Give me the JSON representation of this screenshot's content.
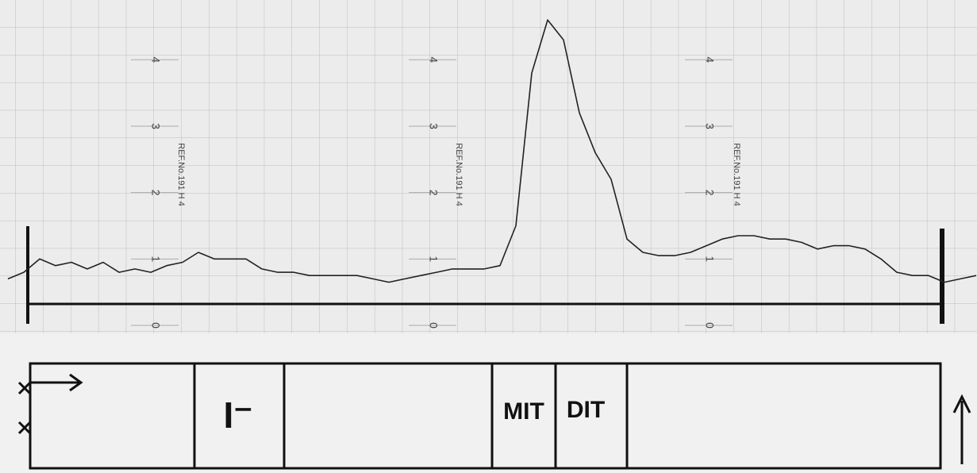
{
  "chart_data": {
    "type": "line",
    "values": [
      0.7,
      0.8,
      1.0,
      0.9,
      0.95,
      0.85,
      0.95,
      0.8,
      0.85,
      0.8,
      0.9,
      0.95,
      1.1,
      1.0,
      1.0,
      1.0,
      0.85,
      0.8,
      0.8,
      0.75,
      0.75,
      0.75,
      0.75,
      0.7,
      0.65,
      0.7,
      0.75,
      0.8,
      0.85,
      0.85,
      0.85,
      0.9,
      1.5,
      3.8,
      4.6,
      4.3,
      3.2,
      2.6,
      2.2,
      1.3,
      1.1,
      1.05,
      1.05,
      1.1,
      1.2,
      1.3,
      1.35,
      1.35,
      1.3,
      1.3,
      1.25,
      1.15,
      1.2,
      1.2,
      1.15,
      1.0,
      0.8,
      0.75,
      0.75,
      0.65,
      0.7,
      0.75
    ],
    "color": "#222222",
    "ylim": [
      0,
      4.9
    ],
    "yticks": [
      0,
      1,
      2,
      3,
      4
    ],
    "annotations": [
      "REF.No.191 H 4",
      "REF.No.191 H 4",
      "REF.No.191 H 4"
    ],
    "strip_labels": [
      "I⁻",
      "MIT",
      "DIT"
    ]
  }
}
